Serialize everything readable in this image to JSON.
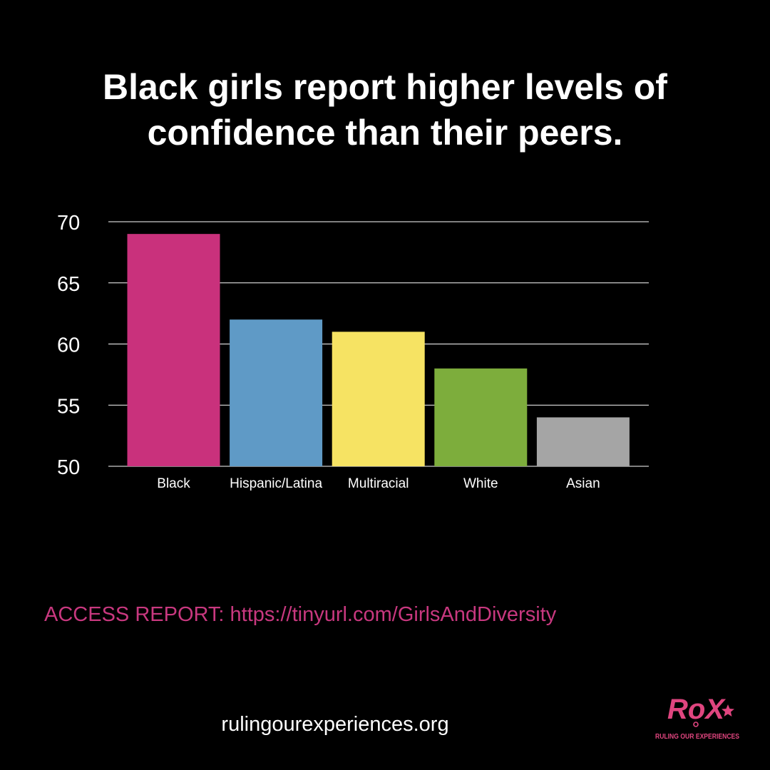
{
  "title_lines": [
    "Black girls report higher levels of",
    "confidence than their peers."
  ],
  "chart_data": {
    "type": "bar",
    "categories": [
      "Black",
      "Hispanic/Latina",
      "Multiracial",
      "White",
      "Asian"
    ],
    "values": [
      69,
      62,
      61,
      58,
      54
    ],
    "colors": [
      "#c9317c",
      "#5f9ac6",
      "#f6e363",
      "#7dad3c",
      "#a5a5a5"
    ],
    "ylim": [
      50,
      70
    ],
    "yticks": [
      50,
      55,
      60,
      65,
      70
    ],
    "grid": true,
    "legend": "none",
    "title": "",
    "xlabel": "",
    "ylabel": ""
  },
  "footer": {
    "report_link": "ACCESS REPORT: https://tinyurl.com/GirlsAndDiversity",
    "website": "rulingourexperiences.org",
    "link_color": "#c8387f"
  },
  "logo": {
    "wordmark": "RoX",
    "tagline": "RULING OUR EXPERIENCES",
    "color": "#e0457f"
  }
}
